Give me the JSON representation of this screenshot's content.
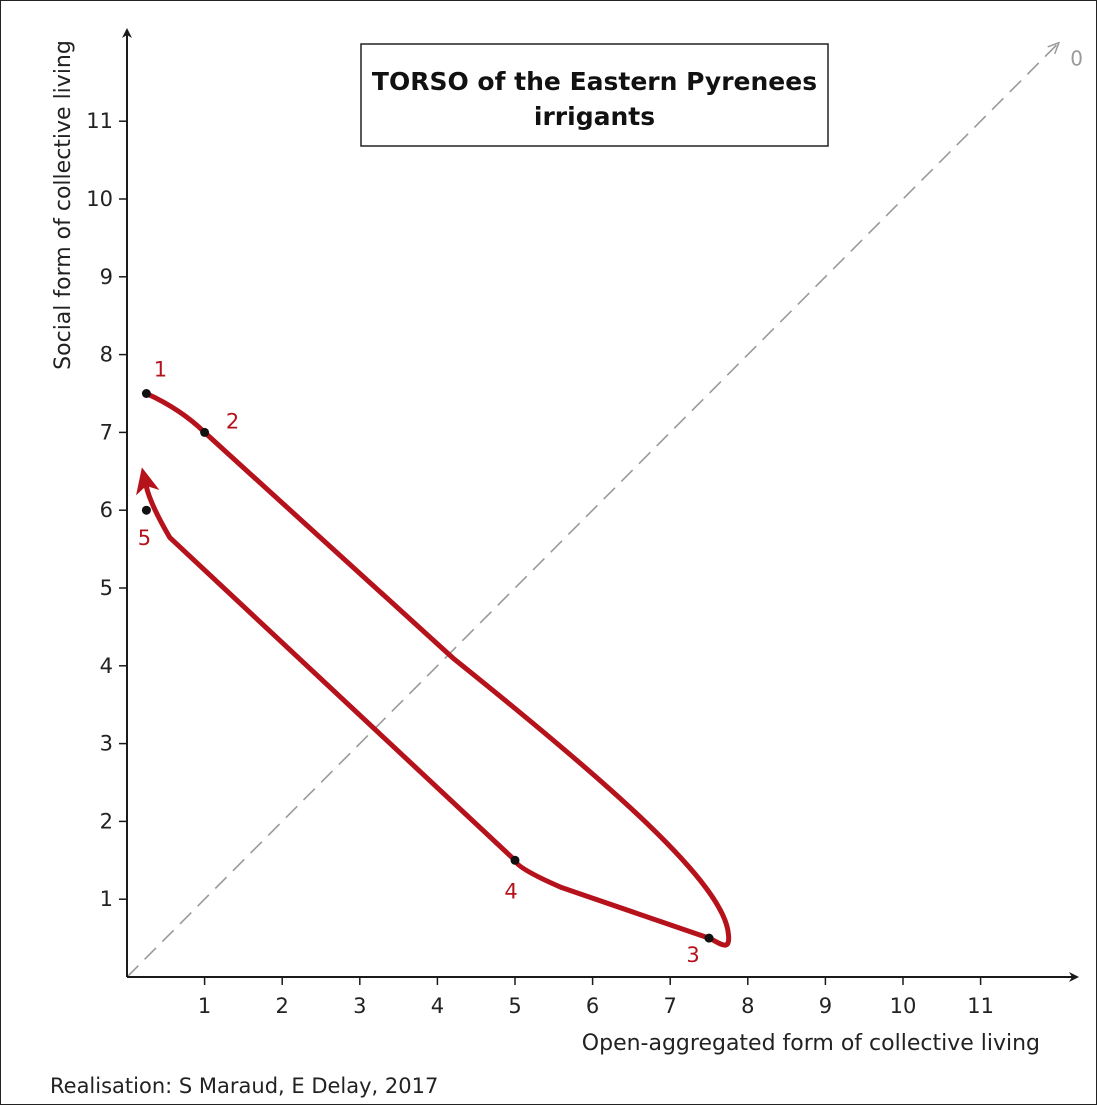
{
  "chart_data": {
    "type": "line",
    "title_lines": [
      "TORSO of the Eastern Pyrenees",
      "irrigants"
    ],
    "xlabel": "Open-aggregated form of collective living",
    "ylabel": "Social form of collective living",
    "xticks": [
      1,
      2,
      3,
      4,
      5,
      6,
      7,
      8,
      9,
      10,
      11
    ],
    "yticks": [
      1,
      2,
      3,
      4,
      5,
      6,
      7,
      8,
      9,
      10,
      11
    ],
    "xlim": [
      0,
      12
    ],
    "ylim": [
      0,
      12
    ],
    "grid": false,
    "diagonal_label": "0",
    "points": [
      {
        "label": "1",
        "x": 0.25,
        "y": 7.5
      },
      {
        "label": "2",
        "x": 1.0,
        "y": 7.0
      },
      {
        "label": "3",
        "x": 7.5,
        "y": 0.5
      },
      {
        "label": "4",
        "x": 5.0,
        "y": 1.5
      },
      {
        "label": "5",
        "x": 0.25,
        "y": 6.0
      }
    ],
    "trajectory_order": [
      "1",
      "2",
      "3",
      "4",
      "5"
    ]
  },
  "credit": "Realisation: S Maraud, E Delay, 2017",
  "colors": {
    "trajectory": "#b5121b",
    "axis": "#1a1a1a",
    "diagonal": "#9a9a9a",
    "point": "#111111"
  }
}
